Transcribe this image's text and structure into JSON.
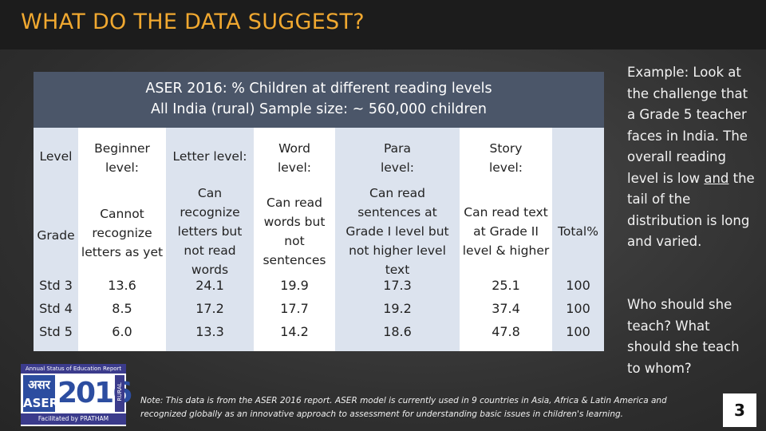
{
  "slide": {
    "title": "WHAT DO THE DATA SUGGEST?",
    "page_number": "3"
  },
  "table": {
    "header_line1": "ASER 2016: % Children at different reading levels",
    "header_line2": "All India (rural) Sample size: ~ 560,000 children",
    "columns": [
      {
        "header": "Level",
        "grade": "Grade",
        "std3": "Std 3",
        "std4": "Std 4",
        "std5": "Std 5"
      },
      {
        "header": "Beginner\nlevel:",
        "grade": "Cannot\nrecognize\nletters as yet",
        "std3": "13.6",
        "std4": "8.5",
        "std5": "6.0"
      },
      {
        "header": "Letter level:",
        "grade": "Can\nrecognize\nletters but\nnot read\nwords",
        "std3": "24.1",
        "std4": "17.2",
        "std5": "13.3"
      },
      {
        "header": "Word\nlevel:",
        "grade": "Can read\nwords but\nnot\nsentences",
        "std3": "19.9",
        "std4": "17.7",
        "std5": "14.2"
      },
      {
        "header": "Para\nlevel:",
        "grade": "Can read\nsentences at\nGrade I level but\nnot higher level\ntext",
        "std3": "17.3",
        "std4": "19.2",
        "std5": "18.6"
      },
      {
        "header": "Story\nlevel:",
        "grade": "Can read text\nat Grade II\nlevel & higher",
        "std3": "25.1",
        "std4": "37.4",
        "std5": "47.8"
      },
      {
        "header": "",
        "grade": "Total%",
        "std3": "100",
        "std4": "100",
        "std5": "100"
      }
    ]
  },
  "sidebar": {
    "para1_before": "Example: Look at the challenge that a Grade 5 teacher faces in India. The overall reading level is low ",
    "para1_underlined": "and",
    "para1_after": " the tail of the distribution is long and varied.",
    "para2": "Who should she teach? What should she teach to whom?"
  },
  "logo": {
    "top_text": "Annual Status of Education Report",
    "hindi_text": "असर",
    "aser_text": "ASER",
    "year": "2016",
    "rural_text": "RURAL",
    "bottom_text": "Facilitated by PRATHAM"
  },
  "note": "Note: This data is from the ASER 2016 report. ASER model is currently used in 9 countries in Asia, Africa & Latin America and recognized globally as an innovative approach to assessment for understanding basic issues in children's learning.",
  "colors": {
    "title": "#f0a830",
    "table_header_bg": "#4b5669",
    "shaded_column": "#dce3ee"
  }
}
